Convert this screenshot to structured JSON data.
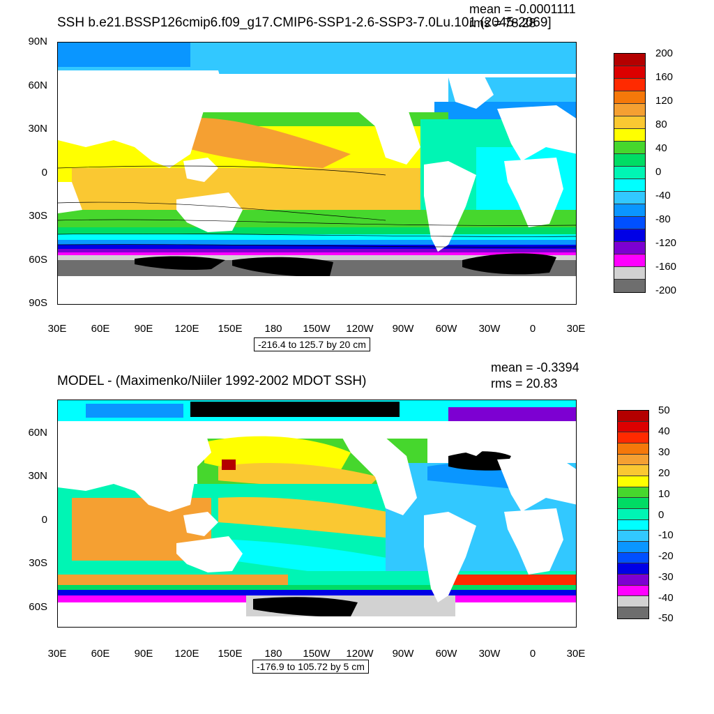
{
  "panel1": {
    "title": "SSH b.e21.BSSP126cmip6.f09_g17.CMIP6-SSP1-2.6-SSP3-7.0Lu.101 (2045-2069]",
    "mean": "mean = -0.0001111",
    "rms": "rms = 78.28",
    "range": "-216.4 to 125.7 by 20 cm",
    "lat_labels": [
      "90N",
      "60N",
      "30N",
      "0",
      "30S",
      "60S",
      "90S"
    ],
    "lon_labels": [
      "30E",
      "60E",
      "90E",
      "120E",
      "150E",
      "180",
      "150W",
      "120W",
      "90W",
      "60W",
      "30W",
      "0",
      "30E"
    ],
    "colorbar": {
      "labels": [
        "200",
        "160",
        "120",
        "80",
        "40",
        "0",
        "-40",
        "-80",
        "-120",
        "-160",
        "-200"
      ],
      "colors": [
        "#b40000",
        "#dc0000",
        "#ff2a00",
        "#f5780a",
        "#f5a032",
        "#fac832",
        "#ffff00",
        "#46d72d",
        "#00dc64",
        "#00f5b4",
        "#00ffff",
        "#32c8ff",
        "#0a96ff",
        "#0050ff",
        "#0000e6",
        "#7d00d2",
        "#ff00ff",
        "#d2d2d2",
        "#6e6e6e"
      ]
    }
  },
  "panel2": {
    "title": "MODEL - (Maximenko/Niiler 1992-2002 MDOT SSH)",
    "mean": "mean = -0.3394",
    "rms": "rms = 20.83",
    "range": "-176.9 to 105.72 by 5 cm",
    "lat_labels": [
      "60N",
      "30N",
      "0",
      "30S",
      "60S"
    ],
    "lon_labels": [
      "30E",
      "60E",
      "90E",
      "120E",
      "150E",
      "180",
      "150W",
      "120W",
      "90W",
      "60W",
      "30W",
      "0",
      "30E"
    ],
    "colorbar": {
      "labels": [
        "50",
        "40",
        "30",
        "20",
        "10",
        "0",
        "-10",
        "-20",
        "-30",
        "-40",
        "-50"
      ],
      "colors": [
        "#b40000",
        "#dc0000",
        "#ff2a00",
        "#f5780a",
        "#f5a032",
        "#fac832",
        "#ffff00",
        "#46d72d",
        "#00dc64",
        "#00f5b4",
        "#00ffff",
        "#32c8ff",
        "#0a96ff",
        "#0050ff",
        "#0000e6",
        "#7d00d2",
        "#ff00ff",
        "#d2d2d2",
        "#6e6e6e"
      ]
    }
  }
}
